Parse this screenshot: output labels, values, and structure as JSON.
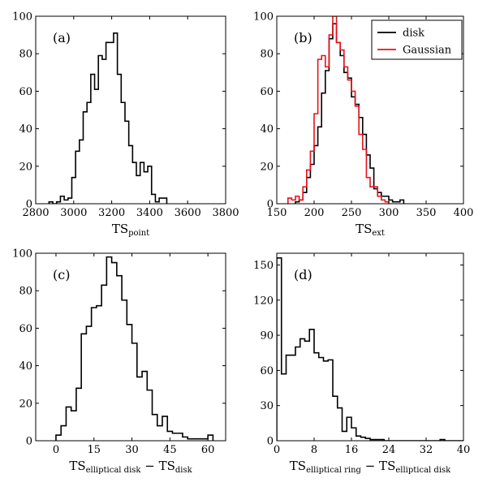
{
  "chart_data": [
    {
      "id": "a",
      "type": "histogram",
      "panel_label": "(a)",
      "xlabel": {
        "main": "TS",
        "sub": "point"
      },
      "xlim": [
        2800,
        3800
      ],
      "ylim": [
        0,
        100
      ],
      "xticks": [
        2800,
        3000,
        3200,
        3400,
        3600,
        3800
      ],
      "yticks": [
        0,
        20,
        40,
        60,
        80,
        100
      ],
      "series": [
        {
          "name": "TS_point",
          "color": "#000000",
          "bin_start": 2870,
          "bin_width": 20,
          "values": [
            1,
            0,
            1,
            4,
            2,
            3,
            14,
            28,
            34,
            49,
            54,
            69,
            61,
            79,
            77,
            86,
            86,
            91,
            69,
            54,
            44,
            31,
            22,
            15,
            22,
            17,
            20,
            5,
            1,
            3,
            3
          ]
        }
      ]
    },
    {
      "id": "b",
      "type": "histogram",
      "panel_label": "(b)",
      "xlabel": {
        "main": "TS",
        "sub": "ext"
      },
      "xlim": [
        150,
        400
      ],
      "ylim": [
        0,
        100
      ],
      "xticks": [
        150,
        200,
        250,
        300,
        350,
        400
      ],
      "yticks": [
        0,
        20,
        40,
        60,
        80,
        100
      ],
      "legend": {
        "position": "top-right"
      },
      "series": [
        {
          "name": "disk",
          "color": "#000000",
          "bin_start": 175,
          "bin_width": 5,
          "values": [
            1,
            2,
            6,
            14,
            21,
            31,
            41,
            59,
            71,
            88,
            96,
            86,
            79,
            70,
            67,
            57,
            53,
            46,
            37,
            26,
            19,
            8,
            6,
            4,
            4,
            2,
            1,
            1,
            2
          ]
        },
        {
          "name": "Gaussian",
          "color": "#e8121b",
          "bin_start": 165,
          "bin_width": 5,
          "values": [
            3,
            2,
            4,
            2,
            9,
            18,
            28,
            48,
            77,
            79,
            73,
            90,
            100,
            86,
            82,
            73,
            66,
            60,
            52,
            37,
            29,
            14,
            9,
            9,
            4,
            2,
            1
          ]
        }
      ]
    },
    {
      "id": "c",
      "type": "histogram",
      "panel_label": "(c)",
      "xlabel": {
        "main": "TS",
        "sub": "elliptical disk",
        "minus": "TS",
        "sub2": "disk"
      },
      "xlim": [
        -8,
        67
      ],
      "ylim": [
        0,
        100
      ],
      "xticks": [
        0,
        15,
        30,
        45,
        60
      ],
      "yticks": [
        0,
        20,
        40,
        60,
        80,
        100
      ],
      "series": [
        {
          "name": "TS_elliptical_disk_minus_TS_disk",
          "color": "#000000",
          "bin_start": 0,
          "bin_width": 2,
          "values": [
            3,
            8,
            18,
            16,
            28,
            57,
            61,
            71,
            72,
            83,
            98,
            95,
            88,
            75,
            62,
            52,
            34,
            37,
            27,
            14,
            8,
            13,
            5,
            4,
            4,
            2,
            1,
            1,
            1,
            1,
            3
          ]
        }
      ]
    },
    {
      "id": "d",
      "type": "histogram",
      "panel_label": "(d)",
      "xlabel": {
        "main": "TS",
        "sub": "elliptical ring",
        "minus": "TS",
        "sub2": "elliptical disk"
      },
      "xlim": [
        0,
        40
      ],
      "ylim": [
        0,
        160
      ],
      "xticks": [
        0,
        8,
        16,
        24,
        32,
        40
      ],
      "yticks": [
        0,
        30,
        60,
        90,
        120,
        150
      ],
      "series": [
        {
          "name": "TS_elliptical_ring_minus_TS_elliptical_disk",
          "color": "#000000",
          "bin_start": 0,
          "bin_width": 1,
          "values": [
            156,
            57,
            73,
            73,
            80,
            87,
            85,
            95,
            75,
            71,
            68,
            69,
            38,
            28,
            8,
            20,
            11,
            4,
            3,
            2,
            1,
            1,
            1,
            0,
            0,
            0,
            0,
            0,
            0,
            0,
            0,
            0,
            0,
            0,
            0,
            1,
            0,
            0,
            0,
            0
          ]
        }
      ]
    }
  ]
}
